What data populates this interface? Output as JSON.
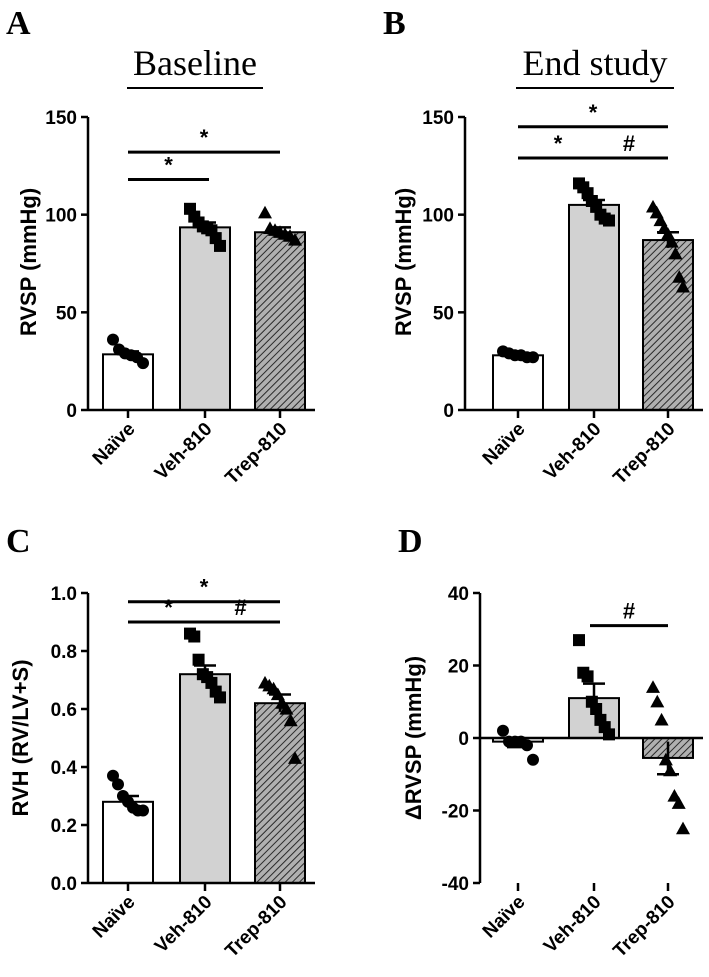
{
  "chart_data": [
    {
      "panel": "A",
      "type": "bar",
      "title": "Baseline",
      "ylabel": "RVSP (mmHg)",
      "ylim": [
        0,
        150
      ],
      "yticks": [
        "0",
        "50",
        "100",
        "150"
      ],
      "yticks_values": [
        0,
        50,
        100,
        150
      ],
      "categories": [
        "Naïve",
        "Veh-810",
        "Trep-810"
      ],
      "values": [
        28.5,
        93.5,
        91.0
      ],
      "sem": [
        1.5,
        2.5,
        2.5
      ],
      "points": [
        [
          36,
          31,
          29,
          28,
          27,
          24
        ],
        [
          103,
          99,
          96,
          94,
          93,
          92,
          88,
          84
        ],
        [
          101,
          93,
          92,
          91,
          90,
          89,
          87
        ]
      ],
      "markers": [
        "circle",
        "square",
        "triangle"
      ],
      "fills": [
        "#ffffff",
        "#d2d2d2",
        "#9a9a9a"
      ],
      "hatch": [
        false,
        false,
        true
      ],
      "significance": [
        {
          "from": 0,
          "to": 1,
          "label": "*",
          "y": 118
        },
        {
          "from": 0,
          "to": 2,
          "label": "*",
          "y": 132
        }
      ]
    },
    {
      "panel": "B",
      "type": "bar",
      "title": "End study",
      "ylabel": "RVSP (mmHg)",
      "ylim": [
        0,
        150
      ],
      "yticks": [
        "0",
        "50",
        "100",
        "150"
      ],
      "yticks_values": [
        0,
        50,
        100,
        150
      ],
      "categories": [
        "Naïve",
        "Veh-810",
        "Trep-810"
      ],
      "values": [
        28.0,
        105.0,
        87.0
      ],
      "sem": [
        1.0,
        2.5,
        4.0
      ],
      "points": [
        [
          30,
          29,
          28,
          28,
          27,
          27
        ],
        [
          116,
          114,
          111,
          107,
          104,
          100,
          98,
          97
        ],
        [
          104,
          101,
          97,
          93,
          90,
          86,
          80,
          68,
          63
        ]
      ],
      "markers": [
        "circle",
        "square",
        "triangle"
      ],
      "fills": [
        "#ffffff",
        "#d2d2d2",
        "#9a9a9a"
      ],
      "hatch": [
        false,
        false,
        true
      ],
      "significance": [
        {
          "from": 0,
          "to": 1,
          "label": "*",
          "y": 129
        },
        {
          "from": 1,
          "to": 2,
          "label": "#",
          "y": 129
        },
        {
          "from": 0,
          "to": 2,
          "label": "*",
          "y": 145
        }
      ]
    },
    {
      "panel": "C",
      "type": "bar",
      "title": "",
      "ylabel": "RVH (RV/LV+S)",
      "ylim": [
        0,
        1.0
      ],
      "yticks": [
        "0.0",
        "0.2",
        "0.4",
        "0.6",
        "0.8",
        "1.0"
      ],
      "yticks_values": [
        0,
        0.2,
        0.4,
        0.6,
        0.8,
        1.0
      ],
      "categories": [
        "Naïve",
        "Veh-810",
        "Trep-810"
      ],
      "values": [
        0.28,
        0.72,
        0.62
      ],
      "sem": [
        0.02,
        0.03,
        0.03
      ],
      "points": [
        [
          0.37,
          0.34,
          0.3,
          0.28,
          0.26,
          0.25,
          0.25
        ],
        [
          0.86,
          0.85,
          0.77,
          0.72,
          0.71,
          0.69,
          0.66,
          0.64
        ],
        [
          0.69,
          0.68,
          0.67,
          0.65,
          0.62,
          0.6,
          0.56,
          0.43
        ]
      ],
      "markers": [
        "circle",
        "square",
        "triangle"
      ],
      "fills": [
        "#ffffff",
        "#d2d2d2",
        "#9a9a9a"
      ],
      "hatch": [
        false,
        false,
        true
      ],
      "significance": [
        {
          "from": 0,
          "to": 1,
          "label": "*",
          "y": 0.9
        },
        {
          "from": 1,
          "to": 2,
          "label": "#",
          "y": 0.9
        },
        {
          "from": 0,
          "to": 2,
          "label": "*",
          "y": 0.97
        }
      ]
    },
    {
      "panel": "D",
      "type": "bar",
      "title": "",
      "ylabel": "ΔRVSP (mmHg)",
      "ylim": [
        -40,
        40
      ],
      "yticks": [
        "-40",
        "-20",
        "0",
        "20",
        "40"
      ],
      "yticks_values": [
        -40,
        -20,
        0,
        20,
        40
      ],
      "categories": [
        "Naïve",
        "Veh-810",
        "Trep-810"
      ],
      "values": [
        -1.0,
        11.0,
        -5.5
      ],
      "sem": [
        1.5,
        4.0,
        4.5
      ],
      "points": [
        [
          2,
          -1,
          -1,
          -1,
          -2,
          -6
        ],
        [
          27,
          18,
          17,
          10,
          8,
          5,
          3,
          1
        ],
        [
          14,
          10,
          5,
          -6,
          -9,
          -16,
          -18,
          -25
        ]
      ],
      "markers": [
        "circle",
        "square",
        "triangle"
      ],
      "fills": [
        "#ffffff",
        "#d2d2d2",
        "#9a9a9a"
      ],
      "hatch": [
        false,
        false,
        true
      ],
      "significance": [
        {
          "from": 1,
          "to": 2,
          "label": "#",
          "y": 31
        }
      ]
    }
  ]
}
